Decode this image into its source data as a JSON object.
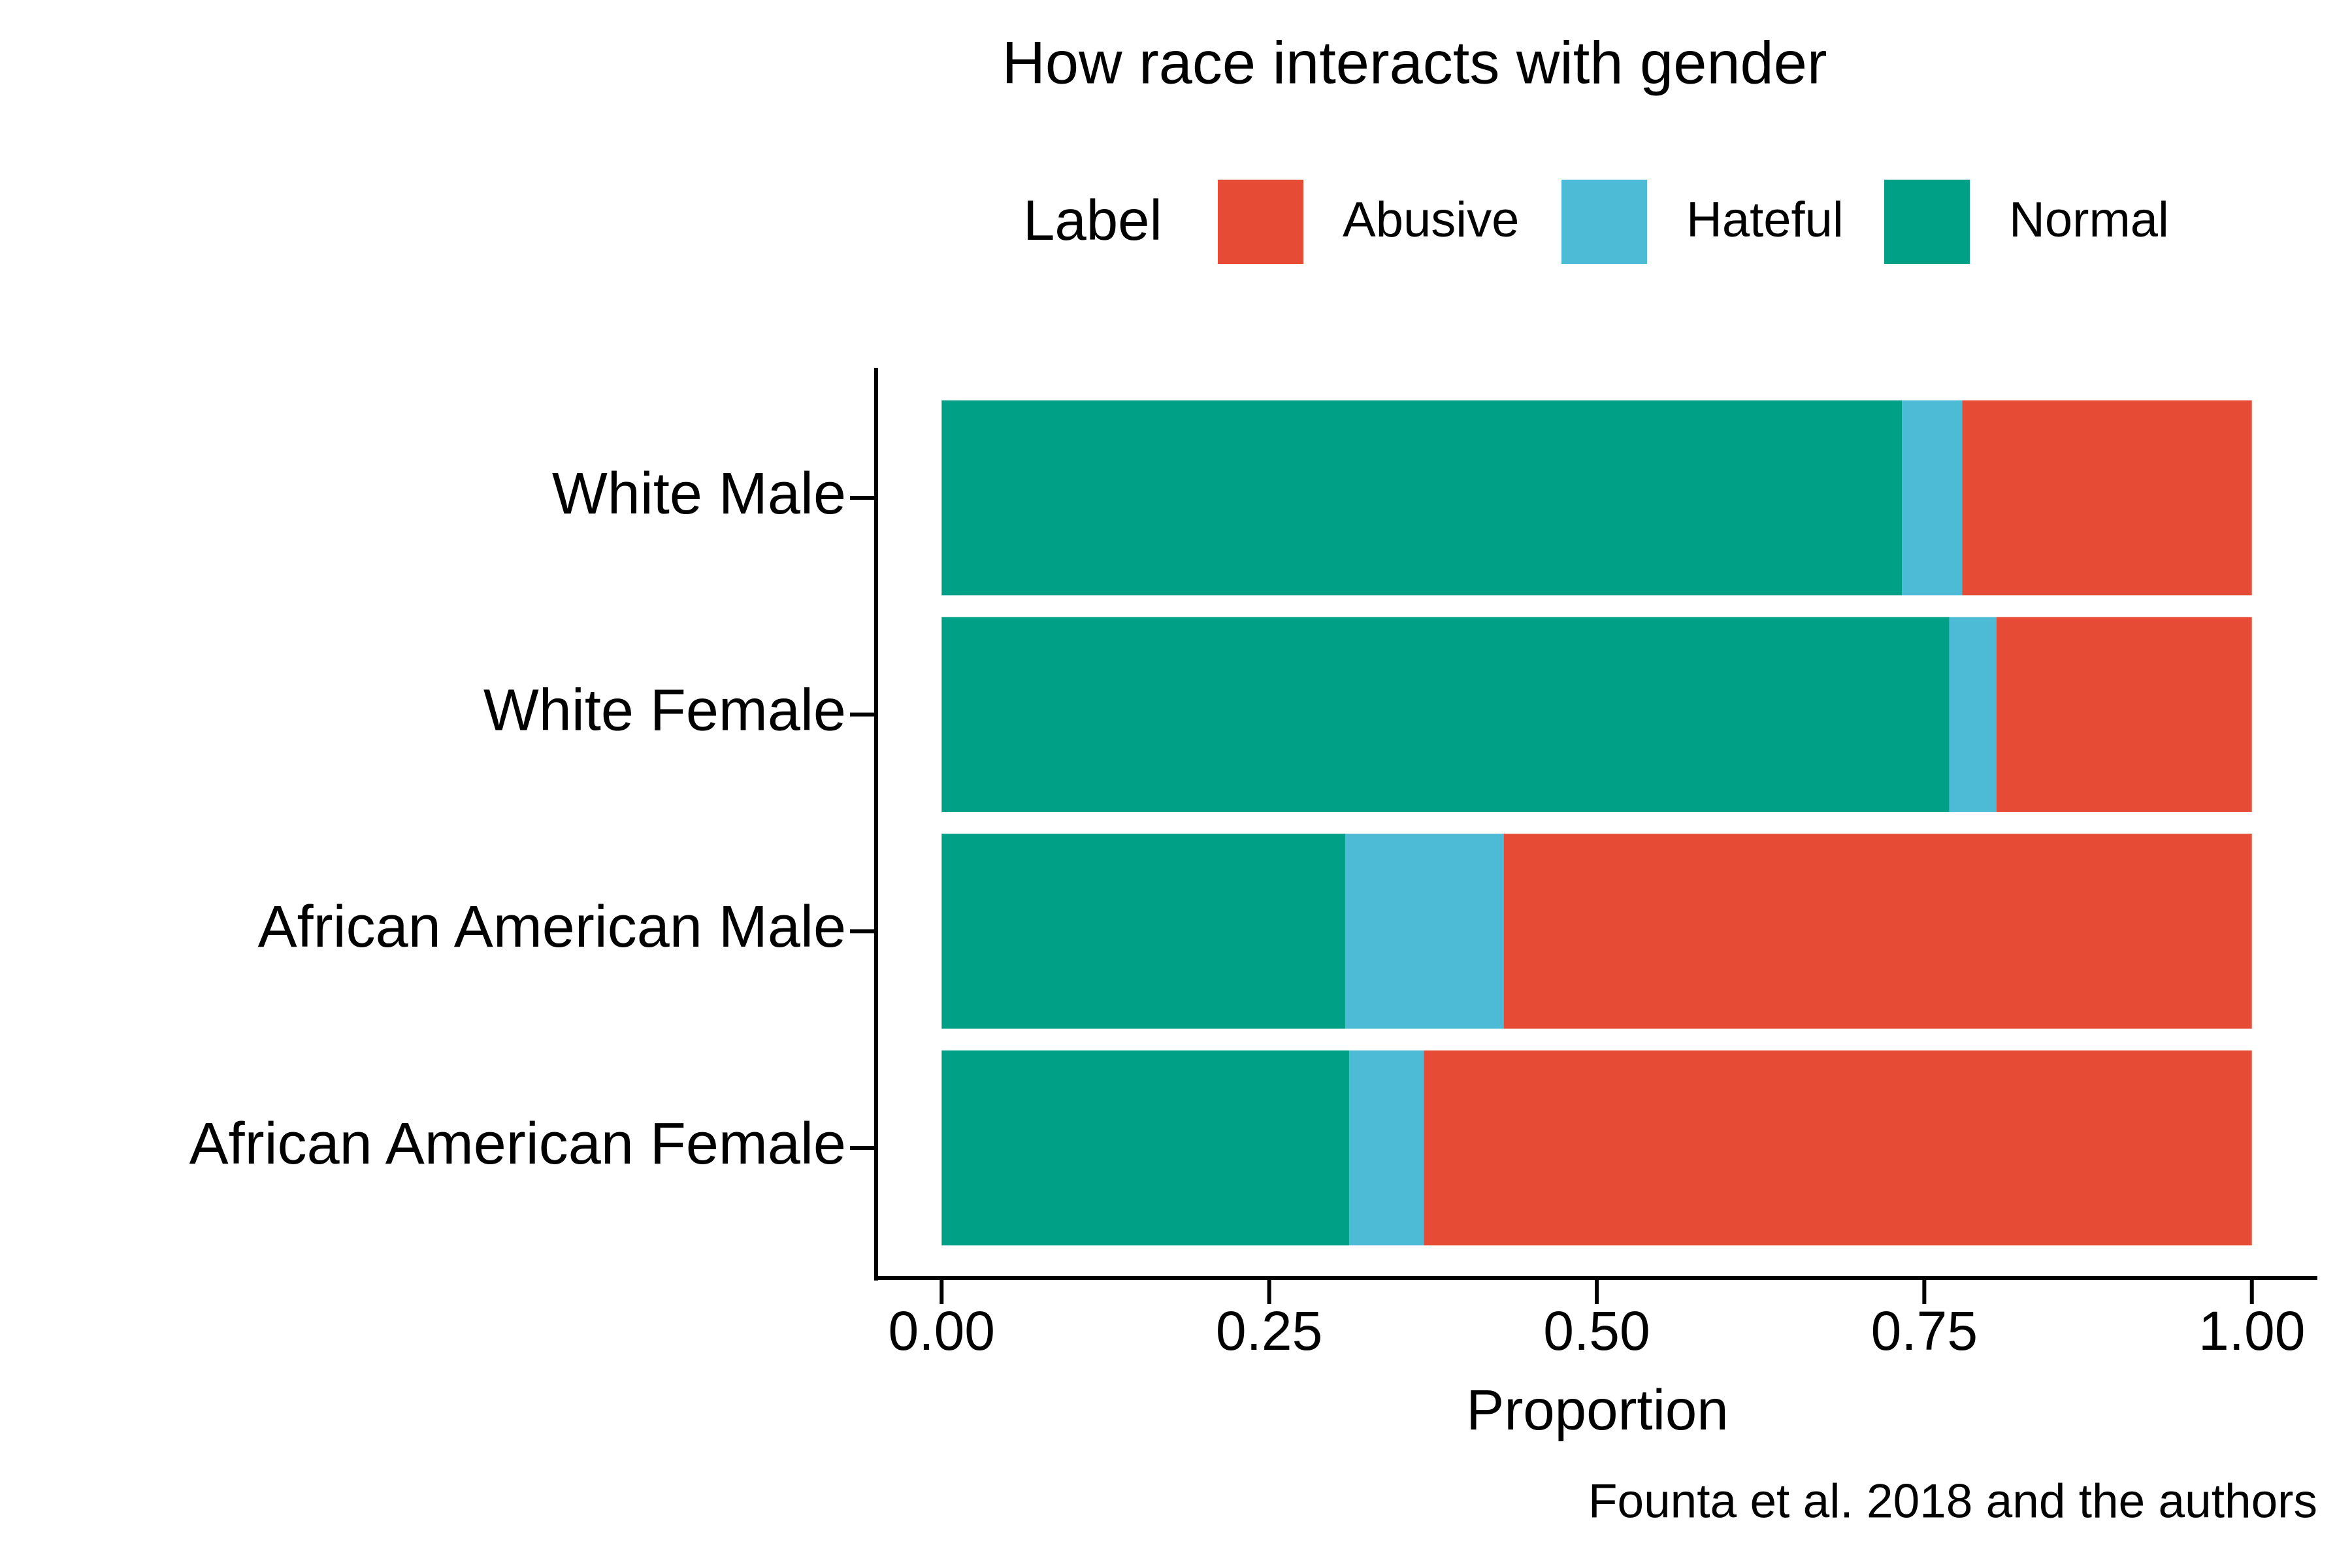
{
  "chart_data": {
    "type": "stacked_bar_horizontal",
    "title": "How race interacts with gender",
    "legend_title": "Label",
    "categories": [
      "White Male",
      "White Female",
      "African American Male",
      "African American Female"
    ],
    "series": [
      {
        "name": "Abusive",
        "color": "#e64b35",
        "values": [
          0.221,
          0.195,
          0.571,
          0.632
        ]
      },
      {
        "name": "Hateful",
        "color": "#4dbbd5",
        "values": [
          0.046,
          0.036,
          0.121,
          0.057
        ]
      },
      {
        "name": "Normal",
        "color": "#00a087",
        "values": [
          0.733,
          0.769,
          0.308,
          0.311
        ]
      }
    ],
    "xlim": [
      -0.05,
      1.05
    ],
    "xticks": [
      {
        "value": 0,
        "label": "0.00"
      },
      {
        "value": 0.25,
        "label": "0.25"
      },
      {
        "value": 0.5,
        "label": "0.50"
      },
      {
        "value": 0.75,
        "label": "0.75"
      },
      {
        "value": 1,
        "label": "1.00"
      }
    ],
    "x_label": "Proportion",
    "caption": "Founta et al. 2018 and the authors",
    "legend_position": "top",
    "grid": false
  }
}
